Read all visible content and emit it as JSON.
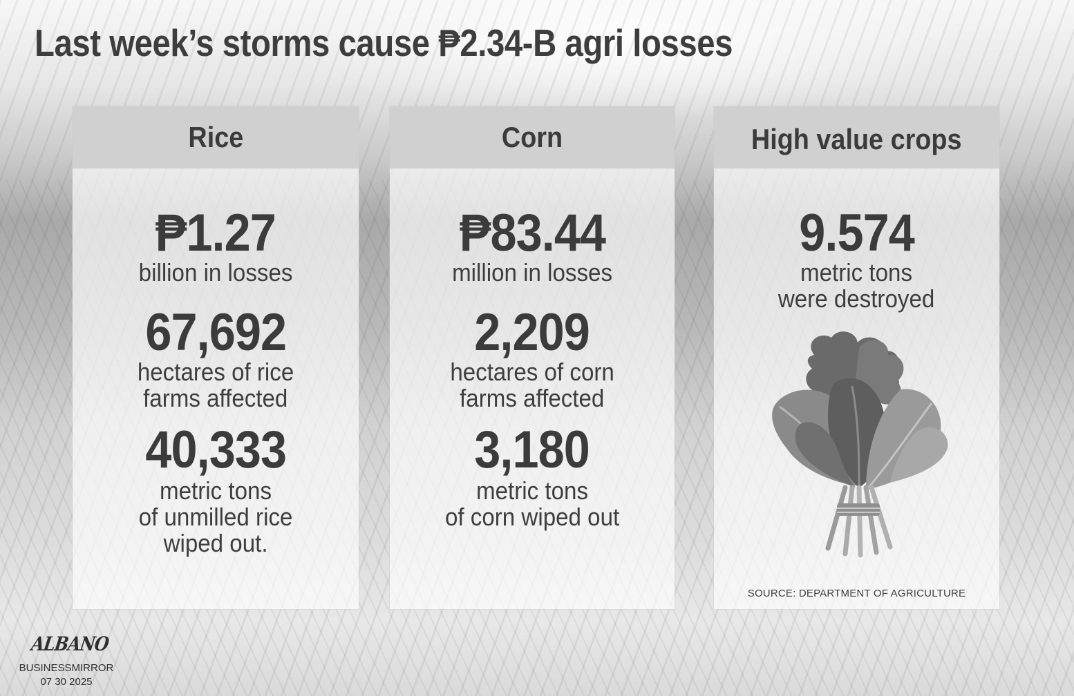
{
  "title": "Last week’s storms cause ₱2.34-B agri losses",
  "cards": {
    "rice": {
      "header": "Rice",
      "loss_value": "₱1.27",
      "loss_desc": "billion in losses",
      "hectares_value": "67,692",
      "hectares_desc_1": "hectares of rice",
      "hectares_desc_2": "farms affected",
      "tons_value": "40,333",
      "tons_desc_1": "metric tons",
      "tons_desc_2": "of unmilled rice",
      "tons_desc_3": "wiped out."
    },
    "corn": {
      "header": "Corn",
      "loss_value": "₱83.44",
      "loss_desc": "million in losses",
      "hectares_value": "2,209",
      "hectares_desc_1": "hectares of corn",
      "hectares_desc_2": "farms affected",
      "tons_value": "3,180",
      "tons_desc_1": "metric tons",
      "tons_desc_2": "of corn wiped out"
    },
    "high_value": {
      "header": "High value crops",
      "tons_value": "9.574",
      "tons_desc_1": "metric tons",
      "tons_desc_2": "were destroyed",
      "icon": "leafy-greens-icon",
      "source": "SOURCE: DEPARTMENT OF AGRICULTURE"
    }
  },
  "signature": "ALBANO",
  "publisher": "BUSINESSMIRROR",
  "date": "07 30 2025"
}
